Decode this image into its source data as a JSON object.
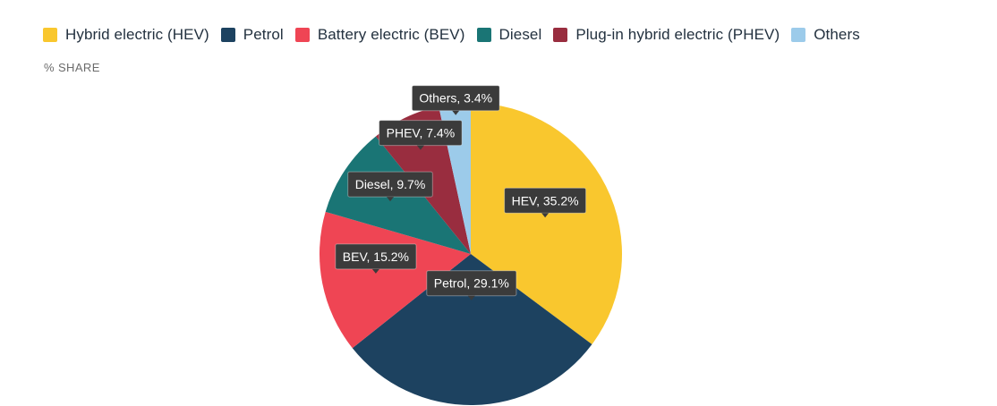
{
  "chart_data": {
    "type": "pie",
    "ylabel": "% SHARE",
    "legend_position": "top-left",
    "series": [
      {
        "name": "Hybrid electric (HEV)",
        "label": "HEV, 35.2%",
        "value": 35.2,
        "color": "#f9c72e"
      },
      {
        "name": "Petrol",
        "label": "Petrol, 29.1%",
        "value": 29.1,
        "color": "#1d4260"
      },
      {
        "name": "Battery electric (BEV)",
        "label": "BEV, 15.2%",
        "value": 15.2,
        "color": "#ef4554"
      },
      {
        "name": "Diesel",
        "label": "Diesel, 9.7%",
        "value": 9.7,
        "color": "#1a7575"
      },
      {
        "name": "Plug-in hybrid electric (PHEV)",
        "label": "PHEV, 7.4%",
        "value": 7.4,
        "color": "#992d3f"
      },
      {
        "name": "Others",
        "label": "Others, 3.4%",
        "value": 3.4,
        "color": "#9ccbea"
      }
    ]
  }
}
